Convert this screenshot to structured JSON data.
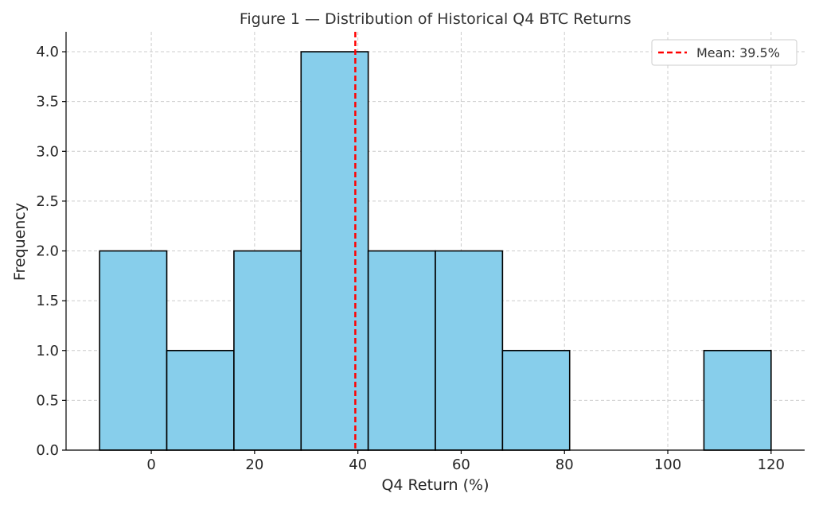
{
  "chart_data": {
    "type": "bar",
    "title": "Figure 1 — Distribution of Historical Q4 BTC Returns",
    "xlabel": "Q4 Return (%)",
    "ylabel": "Frequency",
    "bins": [
      {
        "start": -10,
        "end": 3,
        "count": 2
      },
      {
        "start": 3,
        "end": 16,
        "count": 1
      },
      {
        "start": 16,
        "end": 29,
        "count": 2
      },
      {
        "start": 29,
        "end": 42,
        "count": 4
      },
      {
        "start": 42,
        "end": 55,
        "count": 2
      },
      {
        "start": 55,
        "end": 68,
        "count": 2
      },
      {
        "start": 68,
        "end": 81,
        "count": 1
      },
      {
        "start": 81,
        "end": 94,
        "count": 0
      },
      {
        "start": 94,
        "end": 107,
        "count": 0
      },
      {
        "start": 107,
        "end": 120,
        "count": 1
      }
    ],
    "xlim": [
      -16.5,
      126.5
    ],
    "ylim": [
      0,
      4.2
    ],
    "x_ticks": [
      0,
      20,
      40,
      60,
      80,
      100,
      120
    ],
    "y_ticks": [
      0.0,
      0.5,
      1.0,
      1.5,
      2.0,
      2.5,
      3.0,
      3.5,
      4.0
    ],
    "y_tick_labels": [
      "0.0",
      "0.5",
      "1.0",
      "1.5",
      "2.0",
      "2.5",
      "3.0",
      "3.5",
      "4.0"
    ],
    "mean": {
      "value": 39.5,
      "label": "Mean: 39.5%"
    },
    "grid": true,
    "legend_position": "top-right",
    "colors": {
      "bar_fill": "#87CEEB",
      "bar_edge": "#000000",
      "mean_line": "#ff0000",
      "grid": "#cccccc"
    }
  }
}
